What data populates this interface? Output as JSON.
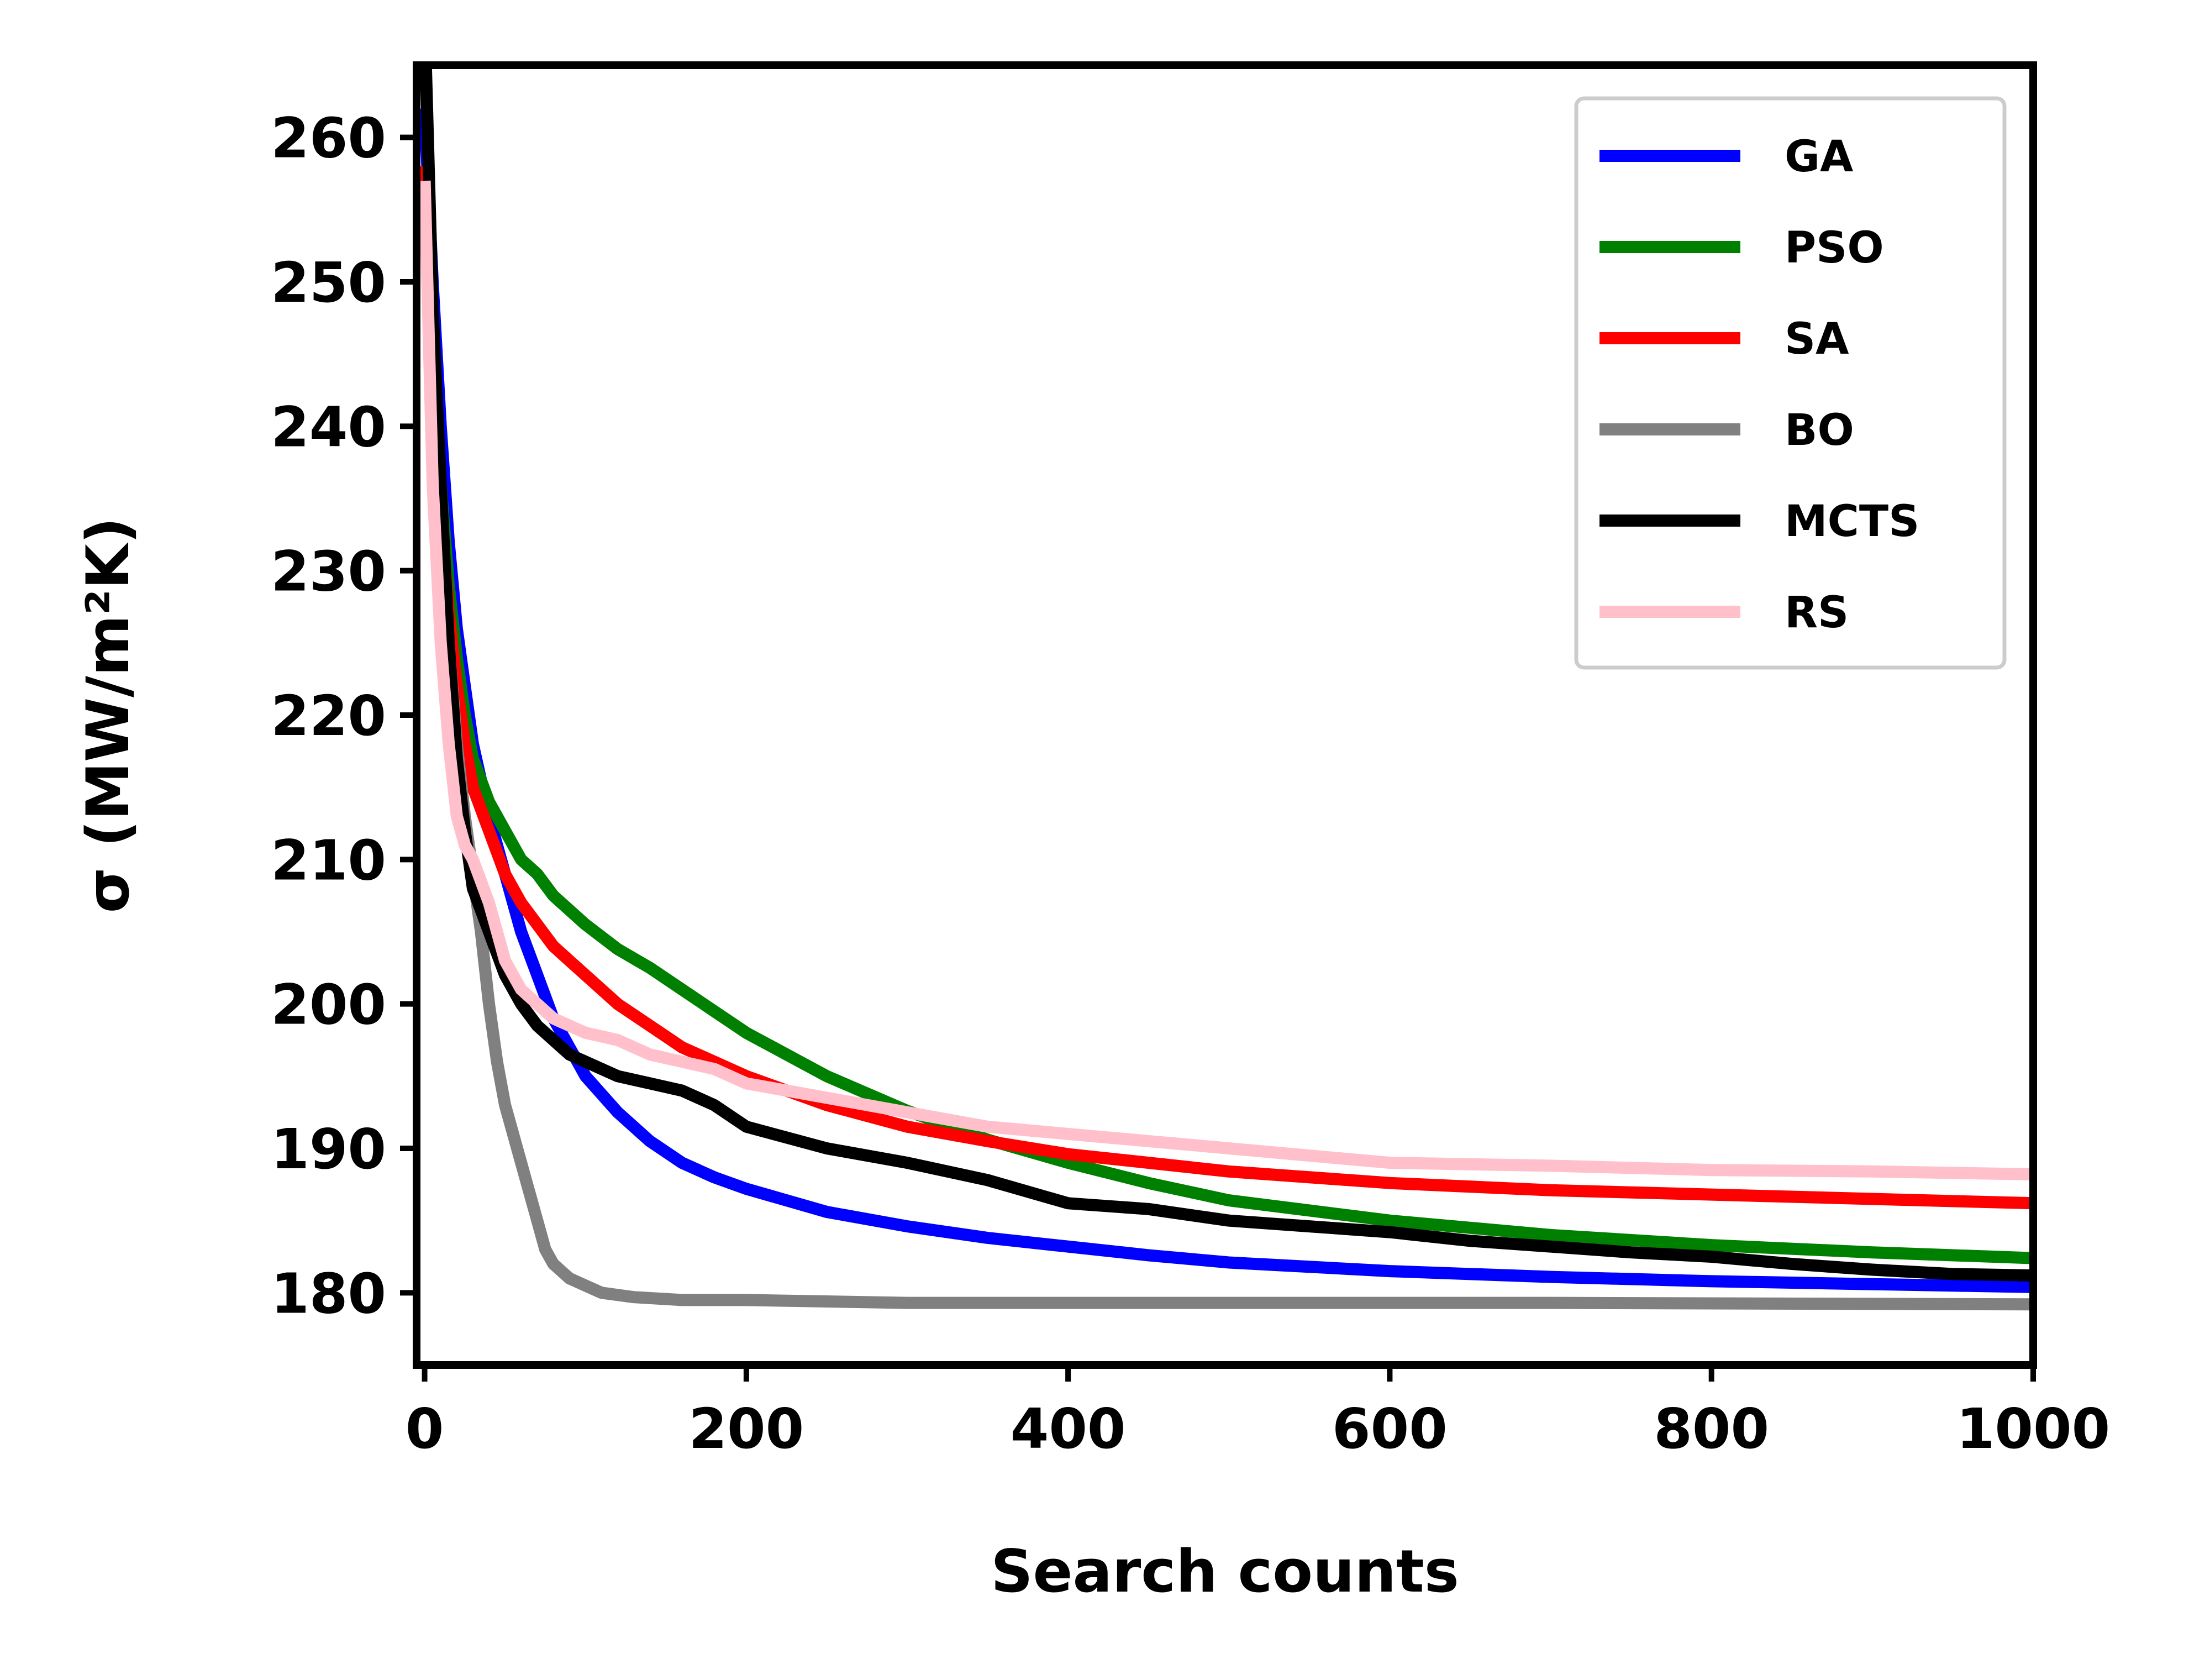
{
  "chart_data": {
    "type": "line",
    "title": "",
    "xlabel": "Search counts",
    "ylabel": "σ (MW/m²K)",
    "xlim": [
      -5,
      1000
    ],
    "ylim": [
      175,
      265
    ],
    "xticks": [
      0,
      200,
      400,
      600,
      800,
      1000
    ],
    "yticks": [
      180,
      190,
      200,
      210,
      220,
      230,
      240,
      250,
      260
    ],
    "grid": false,
    "legend_position": "top-right",
    "series": [
      {
        "name": "GA",
        "color": "#0000ff",
        "points": [
          [
            0,
            262
          ],
          [
            5,
            250
          ],
          [
            10,
            240
          ],
          [
            15,
            232
          ],
          [
            20,
            226
          ],
          [
            25,
            222
          ],
          [
            30,
            218
          ],
          [
            40,
            213
          ],
          [
            50,
            209
          ],
          [
            60,
            205
          ],
          [
            70,
            202
          ],
          [
            80,
            199
          ],
          [
            90,
            197
          ],
          [
            100,
            195
          ],
          [
            120,
            192.5
          ],
          [
            140,
            190.5
          ],
          [
            160,
            189
          ],
          [
            180,
            188
          ],
          [
            200,
            187.2
          ],
          [
            250,
            185.6
          ],
          [
            300,
            184.6
          ],
          [
            350,
            183.8
          ],
          [
            400,
            183.2
          ],
          [
            450,
            182.6
          ],
          [
            500,
            182.1
          ],
          [
            600,
            181.5
          ],
          [
            700,
            181.1
          ],
          [
            800,
            180.8
          ],
          [
            900,
            180.6
          ],
          [
            1000,
            180.4
          ]
        ]
      },
      {
        "name": "PSO",
        "color": "#008000",
        "points": [
          [
            0,
            258
          ],
          [
            5,
            245
          ],
          [
            10,
            236
          ],
          [
            15,
            229
          ],
          [
            20,
            224
          ],
          [
            25,
            220
          ],
          [
            30,
            217
          ],
          [
            40,
            214
          ],
          [
            50,
            212
          ],
          [
            60,
            210
          ],
          [
            70,
            209
          ],
          [
            80,
            207.5
          ],
          [
            90,
            206.5
          ],
          [
            100,
            205.5
          ],
          [
            120,
            203.8
          ],
          [
            140,
            202.5
          ],
          [
            160,
            201
          ],
          [
            180,
            199.5
          ],
          [
            200,
            198
          ],
          [
            250,
            195
          ],
          [
            300,
            192.6
          ],
          [
            350,
            190.6
          ],
          [
            400,
            189
          ],
          [
            450,
            187.6
          ],
          [
            500,
            186.4
          ],
          [
            600,
            185
          ],
          [
            700,
            184
          ],
          [
            800,
            183.3
          ],
          [
            900,
            182.8
          ],
          [
            1000,
            182.4
          ]
        ]
      },
      {
        "name": "SA",
        "color": "#ff0000",
        "points": [
          [
            0,
            258
          ],
          [
            5,
            244
          ],
          [
            10,
            234
          ],
          [
            15,
            227
          ],
          [
            20,
            222
          ],
          [
            25,
            218
          ],
          [
            30,
            215
          ],
          [
            40,
            212
          ],
          [
            50,
            209
          ],
          [
            60,
            207
          ],
          [
            70,
            205.5
          ],
          [
            80,
            204
          ],
          [
            90,
            203
          ],
          [
            100,
            202
          ],
          [
            120,
            200
          ],
          [
            140,
            198.5
          ],
          [
            160,
            197
          ],
          [
            180,
            196
          ],
          [
            200,
            195
          ],
          [
            250,
            193
          ],
          [
            300,
            191.5
          ],
          [
            350,
            190.5
          ],
          [
            400,
            189.6
          ],
          [
            450,
            189
          ],
          [
            500,
            188.4
          ],
          [
            600,
            187.6
          ],
          [
            700,
            187.1
          ],
          [
            800,
            186.8
          ],
          [
            900,
            186.5
          ],
          [
            1000,
            186.2
          ]
        ]
      },
      {
        "name": "BO",
        "color": "#808080",
        "points": [
          [
            0,
            255
          ],
          [
            5,
            243
          ],
          [
            10,
            233
          ],
          [
            15,
            225
          ],
          [
            20,
            218
          ],
          [
            25,
            213
          ],
          [
            30,
            209
          ],
          [
            35,
            205
          ],
          [
            40,
            200
          ],
          [
            45,
            196
          ],
          [
            50,
            193
          ],
          [
            55,
            191
          ],
          [
            60,
            189
          ],
          [
            65,
            187
          ],
          [
            70,
            185
          ],
          [
            75,
            183
          ],
          [
            80,
            182
          ],
          [
            90,
            181
          ],
          [
            100,
            180.5
          ],
          [
            110,
            180
          ],
          [
            130,
            179.7
          ],
          [
            160,
            179.5
          ],
          [
            200,
            179.5
          ],
          [
            300,
            179.3
          ],
          [
            500,
            179.3
          ],
          [
            700,
            179.3
          ],
          [
            1000,
            179.2
          ]
        ]
      },
      {
        "name": "MCTS",
        "color": "#000000",
        "points": [
          [
            0,
            268
          ],
          [
            5,
            248
          ],
          [
            10,
            236
          ],
          [
            15,
            225
          ],
          [
            20,
            217
          ],
          [
            25,
            212
          ],
          [
            30,
            208
          ],
          [
            40,
            205
          ],
          [
            50,
            202
          ],
          [
            60,
            200
          ],
          [
            70,
            198.5
          ],
          [
            80,
            197.5
          ],
          [
            90,
            196.5
          ],
          [
            100,
            196
          ],
          [
            120,
            195
          ],
          [
            140,
            194.5
          ],
          [
            160,
            194
          ],
          [
            180,
            193
          ],
          [
            200,
            191.5
          ],
          [
            250,
            190
          ],
          [
            300,
            189
          ],
          [
            350,
            187.8
          ],
          [
            400,
            186.2
          ],
          [
            450,
            185.8
          ],
          [
            500,
            185
          ],
          [
            550,
            184.6
          ],
          [
            600,
            184.2
          ],
          [
            650,
            183.6
          ],
          [
            700,
            183.2
          ],
          [
            750,
            182.8
          ],
          [
            800,
            182.5
          ],
          [
            850,
            182
          ],
          [
            900,
            181.6
          ],
          [
            950,
            181.3
          ],
          [
            1000,
            181.2
          ]
        ]
      },
      {
        "name": "RS",
        "color": "#ffc0cb",
        "points": [
          [
            0,
            257
          ],
          [
            5,
            236
          ],
          [
            10,
            225
          ],
          [
            15,
            218
          ],
          [
            20,
            213
          ],
          [
            25,
            211
          ],
          [
            30,
            210
          ],
          [
            40,
            207
          ],
          [
            50,
            203
          ],
          [
            60,
            201
          ],
          [
            70,
            200
          ],
          [
            80,
            199
          ],
          [
            90,
            198.5
          ],
          [
            100,
            198
          ],
          [
            120,
            197.5
          ],
          [
            140,
            196.5
          ],
          [
            160,
            196
          ],
          [
            180,
            195.5
          ],
          [
            200,
            194.5
          ],
          [
            250,
            193.5
          ],
          [
            300,
            192.5
          ],
          [
            350,
            191.5
          ],
          [
            400,
            191
          ],
          [
            450,
            190.5
          ],
          [
            500,
            190
          ],
          [
            550,
            189.5
          ],
          [
            600,
            189
          ],
          [
            700,
            188.8
          ],
          [
            800,
            188.5
          ],
          [
            900,
            188.4
          ],
          [
            1000,
            188.2
          ]
        ]
      }
    ]
  }
}
